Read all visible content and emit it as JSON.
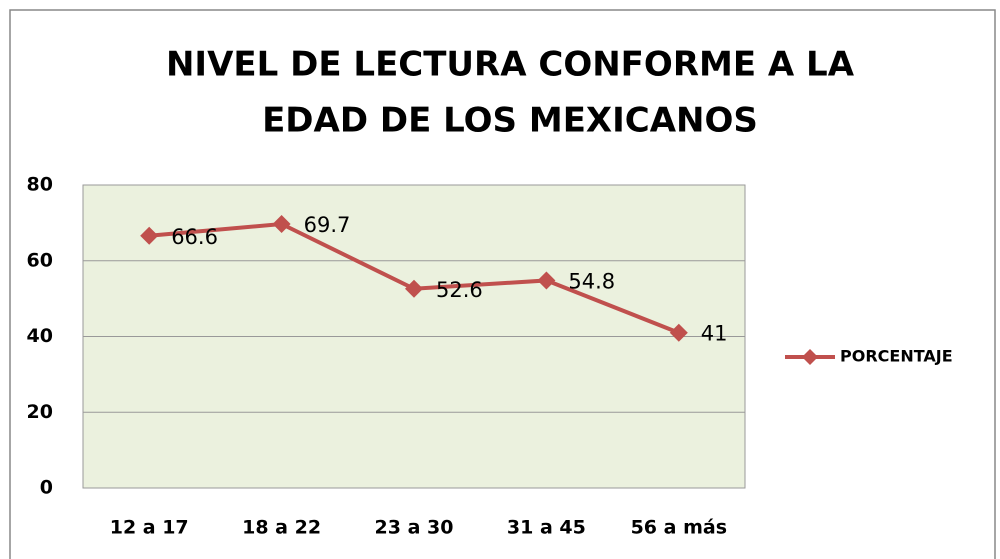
{
  "chart_data": {
    "type": "line",
    "title": [
      "NIVEL DE LECTURA CONFORME A LA",
      "EDAD DE LOS MEXICANOS"
    ],
    "categories": [
      "12 a 17",
      "18 a 22",
      "23 a 30",
      "31 a 45",
      "56 a más"
    ],
    "series": [
      {
        "name": "PORCENTAJE",
        "color": "#c0504d",
        "values": [
          66.6,
          69.7,
          52.6,
          54.8,
          41
        ]
      }
    ],
    "ylim": [
      0,
      80
    ],
    "yticks": [
      0,
      20,
      40,
      60,
      80
    ],
    "grid": true,
    "legend": "right"
  }
}
